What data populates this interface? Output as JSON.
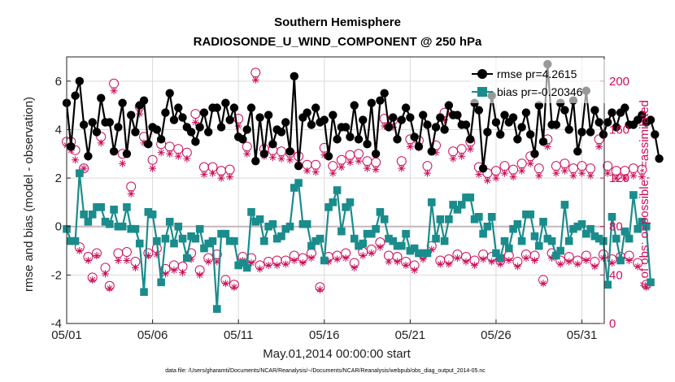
{
  "chart_data": {
    "type": "line",
    "title": "Southern Hemisphere",
    "subtitle": "RADIOSONDE_U_WIND_COMPONENT @ 250 hPa",
    "xlabel": "May.01,2014 00:00:00 start",
    "ylabel": "rmse and bias (model - observation)",
    "ylabel_right": "# of obs: o=possible; *=assimilated",
    "footnote": "data file: /Users/gharamti/Documents/NCAR/Reanalysis/~/Documents/NCAR/Reanalysis/webpub/obs_diag_output_2014-05.nc",
    "xlim": [
      0,
      31.3
    ],
    "ylim": [
      -4,
      7
    ],
    "ylim_right": [
      0,
      220
    ],
    "x_ticks": [
      {
        "x": 0,
        "label": "05/01"
      },
      {
        "x": 5,
        "label": "05/06"
      },
      {
        "x": 10,
        "label": "05/11"
      },
      {
        "x": 15,
        "label": "05/16"
      },
      {
        "x": 20,
        "label": "05/21"
      },
      {
        "x": 25,
        "label": "05/26"
      },
      {
        "x": 30,
        "label": "05/31"
      }
    ],
    "y_ticks": [
      -4,
      -2,
      0,
      2,
      4,
      6
    ],
    "y_ticks_right": [
      0,
      40,
      80,
      120,
      160,
      200
    ],
    "grid": true,
    "legend": {
      "position": "top-right",
      "entries": [
        "rmse pr=4.2615",
        "bias pr=-0.20346"
      ]
    },
    "colors": {
      "rmse": "#000000",
      "bias": "#1a8c8c",
      "obs": "#cc0f5a",
      "zero_line": "#c6b7bd",
      "grid": "#d9d9d9"
    },
    "step_days": 0.25,
    "series": [
      {
        "name": "rmse pr=4.2615",
        "axis": "left",
        "values": [
          5.1,
          3.3,
          5.4,
          6.0,
          4.2,
          2.9,
          4.3,
          3.9,
          5.3,
          4.3,
          4.3,
          3.1,
          4.1,
          5.1,
          3.0,
          4.6,
          3.9,
          5.0,
          5.2,
          3.4,
          4.1,
          4.0,
          3.6,
          4.7,
          5.5,
          4.4,
          4.9,
          4.5,
          4.1,
          3.9,
          3.5,
          4.1,
          4.7,
          3.9,
          4.9,
          4.9,
          4.1,
          5.1,
          4.4,
          4.9,
          3.7,
          3.6,
          4.0,
          4.9,
          2.7,
          4.5,
          3.0,
          4.6,
          3.4,
          4.0,
          3.9,
          4.3,
          3.1,
          6.2,
          2.5,
          4.5,
          4.7,
          4.2,
          4.9,
          4.3,
          4.4,
          2.9,
          4.6,
          3.6,
          4.1,
          4.1,
          3.7,
          5.0,
          3.6,
          4.4,
          3.4,
          5.1,
          3.0,
          5.2,
          5.5,
          4.1,
          4.5,
          3.6,
          4.4,
          4.9,
          4.5,
          3.7,
          3.3,
          4.6,
          4.2,
          3.1,
          4.1,
          4.5,
          4.0,
          5.0,
          4.6,
          4.6,
          4.2,
          4.2,
          3.6,
          5.1,
          4.8,
          2.4,
          3.9,
          5.4,
          4.3,
          3.8,
          4.6,
          4.3,
          4.5,
          3.6,
          4.1,
          4.7,
          3.8,
          3.0,
          5.0,
          3.5,
          6.7,
          4.2,
          4.2,
          5.1,
          4.8,
          4.0,
          5.2,
          3.1,
          3.9,
          5.6,
          3.9,
          4.8,
          4.3,
          3.8,
          4.3,
          4.7,
          4.1,
          4.7,
          4.9,
          4.2,
          4.2,
          4.4,
          4.6,
          4.3,
          4.4,
          3.8,
          2.8
        ]
      },
      {
        "name": "bias pr=-0.20346",
        "axis": "left",
        "values": [
          -0.1,
          -0.6,
          -0.6,
          2.2,
          0.5,
          0.2,
          0.5,
          0.8,
          0.8,
          0.2,
          0.1,
          0.7,
          0.0,
          0.0,
          0.8,
          -0.1,
          -0.1,
          -0.7,
          -2.7,
          0.6,
          0.5,
          -0.6,
          -2.3,
          -0.5,
          0.2,
          -0.7,
          0.0,
          -0.5,
          -1.3,
          -0.4,
          -0.5,
          -0.1,
          -0.9,
          -0.7,
          -0.6,
          -3.4,
          -0.3,
          -0.3,
          -0.6,
          -0.6,
          -1.6,
          -1.5,
          -1.7,
          0.6,
          0.2,
          0.3,
          -0.6,
          0.0,
          0.1,
          -0.5,
          -0.4,
          -0.1,
          0.0,
          1.6,
          1.8,
          0.1,
          0.1,
          -0.8,
          -0.6,
          -0.5,
          -1.4,
          0.8,
          1.0,
          1.5,
          -0.2,
          0.8,
          1.0,
          -0.5,
          -0.8,
          -0.7,
          -0.3,
          -0.3,
          -0.1,
          0.6,
          0.3,
          -0.5,
          -0.6,
          -0.8,
          -0.8,
          -0.3,
          -1.0,
          -0.9,
          -1.1,
          -1.1,
          -1.1,
          1.0,
          -0.5,
          0.3,
          -0.6,
          0.3,
          0.9,
          0.7,
          0.9,
          1.2,
          1.2,
          0.3,
          0.4,
          -0.3,
          0.0,
          0.4,
          -1.1,
          -1.3,
          -0.6,
          -0.9,
          -0.1,
          0.1,
          -0.6,
          0.5,
          0.5,
          -0.4,
          -0.8,
          0.2,
          -0.5,
          -0.6,
          -1.2,
          -1.0,
          0.9,
          -0.6,
          -0.1,
          0.0,
          0.1,
          -0.3,
          -0.1,
          -0.4,
          -0.5,
          -0.6,
          -2.4,
          0.4,
          -0.5,
          -1.4,
          -0.2,
          -0.5,
          1.3,
          -0.1,
          0.2,
          0.0,
          -2.3
        ]
      },
      {
        "name": "",
        "axis": "right",
        "marker": "circle",
        "values": [
          150,
          150,
          143,
          63,
          128,
          55,
          38,
          58,
          154,
          46,
          31,
          198,
          58,
          140,
          59,
          113,
          51,
          179,
          154,
          58,
          135,
          62,
          148,
          45,
          146,
          48,
          144,
          47,
          141,
          58,
          173,
          44,
          129,
          54,
          129,
          57,
          126,
          36,
          127,
          32,
          169,
          55,
          146,
          54,
          207,
          48,
          144,
          51,
          143,
          52,
          142,
          52,
          141,
          56,
          138,
          54,
          131,
          58,
          131,
          30,
          145,
          55,
          130,
          56,
          135,
          58,
          139,
          50,
          140,
          59,
          134,
          61,
          133,
          67,
          169,
          56,
          168,
          55,
          134,
          51,
          152,
          48,
          151,
          57,
          130,
          64,
          147,
          52,
          174,
          53,
          142,
          57,
          144,
          55,
          150,
          52,
          129,
          57,
          124,
          55,
          126,
          52,
          130,
          56,
          127,
          51,
          132,
          57,
          138,
          56,
          128,
          36,
          152,
          58,
          130,
          52,
          132,
          55,
          128,
          52,
          130,
          56,
          128,
          51,
          152,
          57,
          130,
          53,
          126,
          55,
          126,
          56,
          128,
          50,
          127,
          32
        ]
      },
      {
        "name": "",
        "axis": "right",
        "marker": "star",
        "values": [
          147,
          143,
          135,
          60,
          128,
          52,
          36,
          56,
          149,
          41,
          29,
          192,
          52,
          132,
          52,
          107,
          46,
          173,
          149,
          56,
          128,
          57,
          141,
          41,
          140,
          44,
          138,
          42,
          136,
          53,
          166,
          40,
          123,
          51,
          124,
          51,
          120,
          33,
          121,
          30,
          163,
          52,
          140,
          50,
          201,
          45,
          138,
          48,
          137,
          48,
          136,
          49,
          135,
          52,
          131,
          50,
          126,
          54,
          125,
          28,
          139,
          51,
          124,
          53,
          129,
          54,
          133,
          46,
          134,
          56,
          128,
          58,
          127,
          63,
          163,
          51,
          162,
          51,
          128,
          48,
          146,
          44,
          145,
          53,
          124,
          61,
          141,
          49,
          168,
          49,
          136,
          54,
          138,
          51,
          144,
          48,
          123,
          53,
          118,
          51,
          120,
          49,
          124,
          52,
          121,
          47,
          126,
          54,
          132,
          52,
          122,
          33,
          146,
          54,
          124,
          49,
          126,
          51,
          122,
          49,
          124,
          52,
          122,
          47,
          146,
          54,
          124,
          50,
          120,
          52,
          120,
          52,
          122,
          47,
          121,
          30
        ]
      }
    ]
  }
}
